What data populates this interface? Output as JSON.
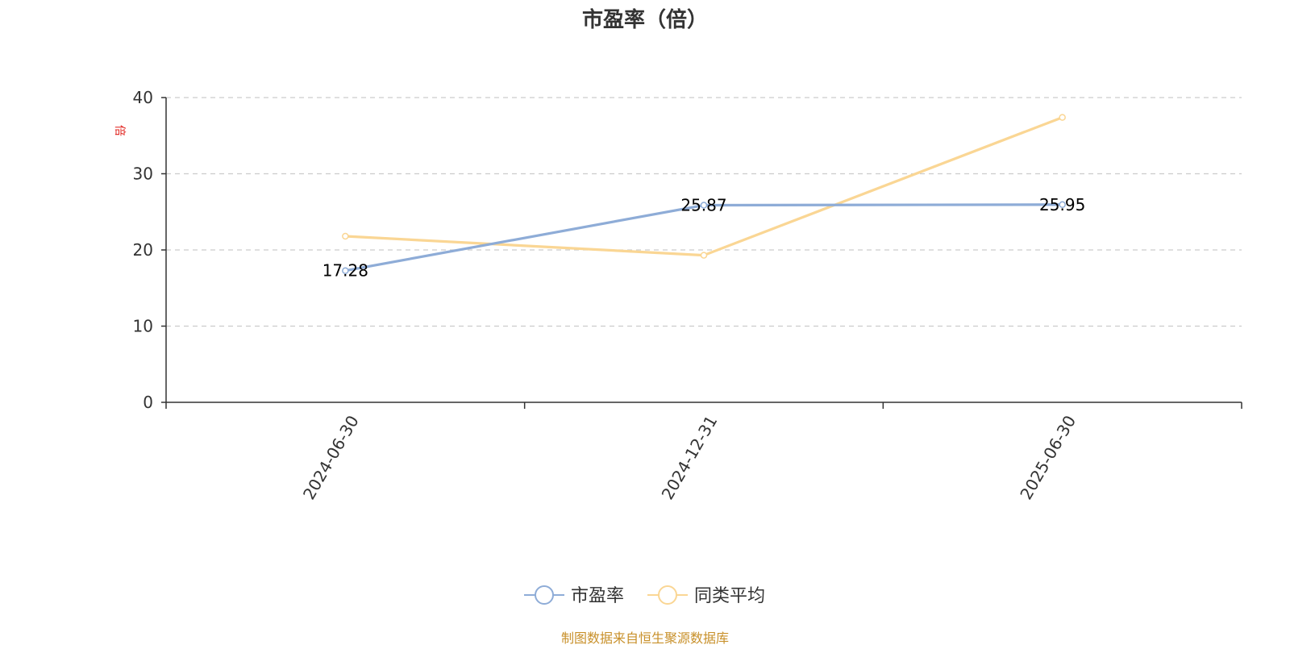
{
  "chart_data": {
    "type": "line",
    "title": "市盈率（倍）",
    "ylabel": "倍",
    "categories": [
      "2024-06-30",
      "2024-12-31",
      "2025-06-30"
    ],
    "ylim": [
      0,
      40
    ],
    "yticks": [
      0,
      10,
      20,
      30,
      40
    ],
    "grid": true,
    "legend_position": "bottom",
    "series": [
      {
        "name": "市盈率",
        "color": "#8eacd7",
        "values": [
          17.28,
          25.87,
          25.95
        ],
        "labels": [
          "17.28",
          "25.87",
          "25.95"
        ]
      },
      {
        "name": "同类平均",
        "color": "#fad694",
        "values": [
          21.8,
          19.3,
          37.4
        ]
      }
    ],
    "source": "制图数据来自恒生聚源数据库"
  }
}
